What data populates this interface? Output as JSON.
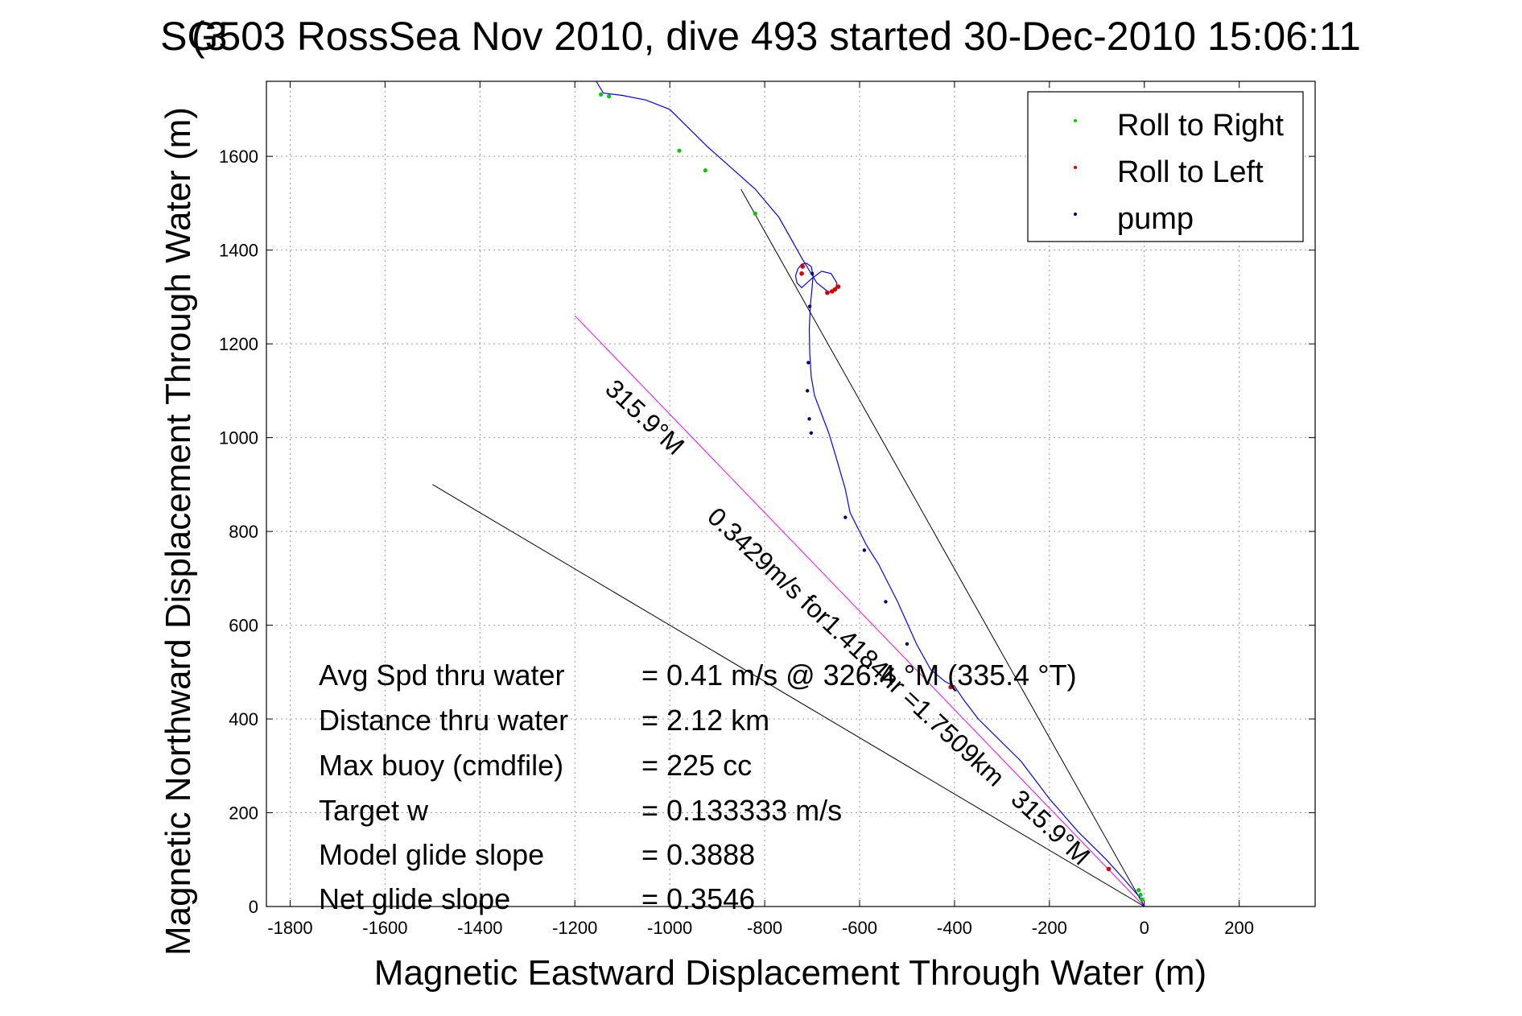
{
  "chart_data": {
    "type": "line",
    "title": "SG503 RossSea Nov 2010, dive 493 started 30-Dec-2010 15:06:11",
    "title_overlap": "(3",
    "xlabel": "Magnetic Eastward Displacement Through Water (m)",
    "ylabel": "Magnetic Northward Displacement Through Water (m)",
    "xlim": [
      -1850,
      360
    ],
    "ylim": [
      0,
      1760
    ],
    "xticks": [
      -1800,
      -1600,
      -1400,
      -1200,
      -1000,
      -800,
      -600,
      -400,
      -200,
      0,
      200
    ],
    "yticks": [
      0,
      200,
      400,
      600,
      800,
      1000,
      1200,
      1400,
      1600
    ],
    "grid": true,
    "legend_position": "top-right",
    "legend": [
      {
        "label": "Roll to Right",
        "color": "#00cc00"
      },
      {
        "label": "Roll to Left",
        "color": "#dd0000"
      },
      {
        "label": "pump",
        "color": "#000080"
      }
    ],
    "series": [
      {
        "role": "track",
        "color": "#0000ff",
        "x": [
          0,
          -10,
          -40,
          -80,
          -140,
          -200,
          -260,
          -310,
          -350,
          -380,
          -400,
          -420,
          -450,
          -480,
          -520,
          -560,
          -585,
          -605,
          -620,
          -630,
          -650,
          -665,
          -680,
          -695,
          -702,
          -705,
          -706,
          -704,
          -700,
          -698,
          -702,
          -712,
          -722,
          -730,
          -735,
          -732,
          -722,
          -700,
          -680,
          -660,
          -648,
          -650,
          -665,
          -690,
          -720,
          -770,
          -820,
          -870,
          -920,
          -960,
          -1000,
          -1050,
          -1100,
          -1140,
          -1155
        ],
        "y": [
          0,
          20,
          55,
          100,
          160,
          230,
          310,
          360,
          400,
          440,
          470,
          480,
          505,
          560,
          650,
          730,
          770,
          810,
          840,
          890,
          960,
          1010,
          1050,
          1090,
          1130,
          1180,
          1230,
          1280,
          1320,
          1345,
          1365,
          1372,
          1370,
          1360,
          1345,
          1330,
          1320,
          1340,
          1355,
          1350,
          1330,
          1318,
          1310,
          1330,
          1380,
          1470,
          1530,
          1575,
          1620,
          1660,
          1700,
          1720,
          1730,
          1735,
          1760
        ]
      }
    ],
    "roll_right_points": [
      [
        -5,
        15
      ],
      [
        -8,
        25
      ],
      [
        -12,
        35
      ],
      [
        -820,
        1478
      ],
      [
        -925,
        1570
      ],
      [
        -980,
        1612
      ],
      [
        -1128,
        1728
      ],
      [
        -1145,
        1732
      ]
    ],
    "roll_left_points": [
      [
        -75,
        80
      ],
      [
        -408,
        468
      ],
      [
        -645,
        1322
      ],
      [
        -652,
        1316
      ],
      [
        -658,
        1312
      ],
      [
        -668,
        1309
      ],
      [
        -720,
        1365
      ],
      [
        -722,
        1350
      ]
    ],
    "pump_points": [
      [
        -700,
        1350
      ],
      [
        -705,
        1280
      ],
      [
        -708,
        1160
      ],
      [
        -710,
        1100
      ],
      [
        -706,
        1040
      ],
      [
        -702,
        1010
      ],
      [
        -630,
        830
      ],
      [
        -590,
        760
      ],
      [
        -545,
        650
      ],
      [
        -500,
        560
      ]
    ],
    "reference_lines": [
      {
        "x": [
          0,
          -850
        ],
        "y": [
          0,
          1530
        ],
        "color": "#000000"
      },
      {
        "x": [
          0,
          -1200
        ],
        "y": [
          0,
          1260
        ],
        "color": "#ff00ff"
      },
      {
        "x": [
          0,
          -1500
        ],
        "y": [
          0,
          900
        ],
        "color": "#000000"
      }
    ],
    "annotations": [
      {
        "text": "315.9°M",
        "x": -1065,
        "y": 1030,
        "angle": 43
      },
      {
        "text": "0.3429m/s for1.4184hr =1.7509km",
        "x": -620,
        "y": 540,
        "angle": 43
      },
      {
        "text": "315.9°M",
        "x": -210,
        "y": 155,
        "angle": 43
      }
    ],
    "stats": [
      {
        "label": "Avg Spd thru water",
        "value": "=  0.41 m/s @ 326.4 °M (335.4 °T)"
      },
      {
        "label": "Distance thru water",
        "value": "=  2.12 km"
      },
      {
        "label": "Max buoy (cmdfile)",
        "value": "= 225 cc"
      },
      {
        "label": "Target w",
        "value": "= 0.133333 m/s"
      },
      {
        "label": "Model glide slope",
        "value": "= 0.3888"
      },
      {
        "label": "Net glide slope",
        "value": "= 0.3546"
      }
    ]
  }
}
